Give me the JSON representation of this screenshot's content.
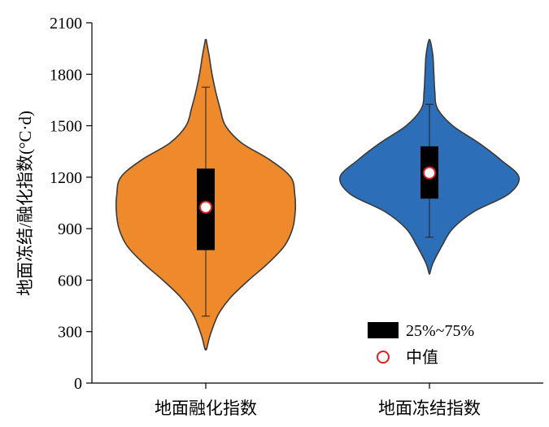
{
  "chart_data": {
    "type": "violin",
    "ylabel": "地面冻结/融化指数(°C·d)",
    "ylim": [
      0,
      2100
    ],
    "yticks": [
      0,
      300,
      600,
      900,
      1200,
      1500,
      1800,
      2100
    ],
    "categories": [
      "地面融化指数",
      "地面冻结指数"
    ],
    "grid": false,
    "legend_position": "bottom-right",
    "legend": {
      "box_label": "25%~75%",
      "median_label": "中值"
    },
    "series": [
      {
        "category": "地面融化指数",
        "color": "#ee8a2c",
        "range": [
          200,
          2000
        ],
        "whisker": [
          390,
          1725
        ],
        "box": [
          775,
          1250
        ],
        "median": 1025,
        "density": [
          [
            200,
            0.01
          ],
          [
            280,
            0.05
          ],
          [
            400,
            0.14
          ],
          [
            500,
            0.28
          ],
          [
            600,
            0.48
          ],
          [
            700,
            0.7
          ],
          [
            800,
            0.88
          ],
          [
            900,
            0.97
          ],
          [
            1000,
            1.0
          ],
          [
            1100,
            0.995
          ],
          [
            1200,
            0.95
          ],
          [
            1300,
            0.72
          ],
          [
            1400,
            0.4
          ],
          [
            1500,
            0.22
          ],
          [
            1600,
            0.16
          ],
          [
            1700,
            0.11
          ],
          [
            1800,
            0.07
          ],
          [
            1900,
            0.04
          ],
          [
            1970,
            0.015
          ],
          [
            2000,
            0.005
          ]
        ]
      },
      {
        "category": "地面冻结指数",
        "color": "#2c6fb8",
        "range": [
          640,
          2000
        ],
        "whisker": [
          850,
          1625
        ],
        "box": [
          1075,
          1380
        ],
        "median": 1225,
        "density": [
          [
            640,
            0.005
          ],
          [
            700,
            0.04
          ],
          [
            800,
            0.14
          ],
          [
            900,
            0.26
          ],
          [
            1000,
            0.5
          ],
          [
            1100,
            0.88
          ],
          [
            1200,
            1.0
          ],
          [
            1300,
            0.8
          ],
          [
            1400,
            0.55
          ],
          [
            1500,
            0.26
          ],
          [
            1600,
            0.09
          ],
          [
            1700,
            0.06
          ],
          [
            1800,
            0.05
          ],
          [
            1900,
            0.04
          ],
          [
            1970,
            0.02
          ],
          [
            2000,
            0.005
          ]
        ]
      }
    ]
  }
}
